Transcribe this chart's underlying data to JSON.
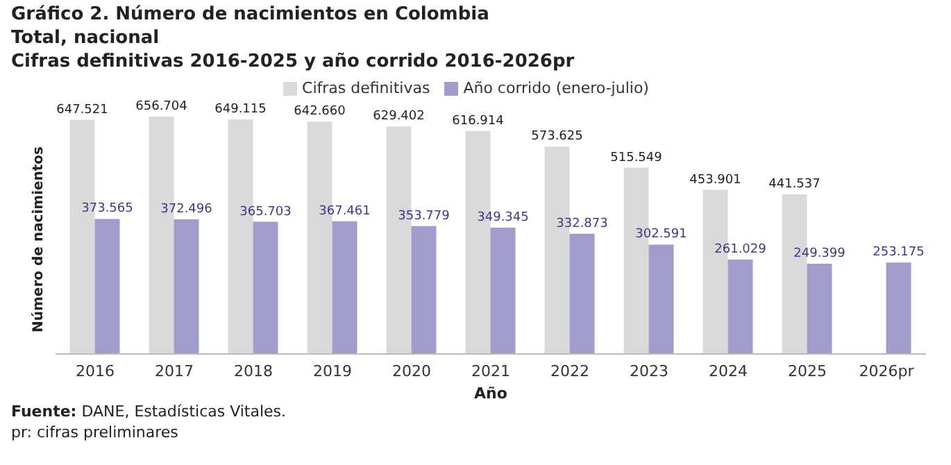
{
  "chart_data": {
    "type": "bar",
    "title": "Gráfico 2. Número de nacimientos en Colombia",
    "subtitle": "Total, nacional\nCifras definitivas 2016-2025 y año corrido 2016-2026pr",
    "xlabel": "Año",
    "ylabel": "Número de nacimientos",
    "categories": [
      "2016",
      "2017",
      "2018",
      "2019",
      "2020",
      "2021",
      "2022",
      "2023",
      "2024",
      "2025",
      "2026pr"
    ],
    "series": [
      {
        "name": "Cifras definitivas",
        "color": "#d9d9d9",
        "values": [
          647521,
          656704,
          649115,
          642660,
          629402,
          616914,
          573625,
          515549,
          453901,
          441537,
          null
        ],
        "value_labels": [
          "647.521",
          "656.704",
          "649.115",
          "642.660",
          "629.402",
          "616.914",
          "573.625",
          "515.549",
          "453.901",
          "441.537",
          null
        ]
      },
      {
        "name": "Año corrido (enero-julio)",
        "color": "#a09dcc",
        "values": [
          373565,
          372496,
          365703,
          367461,
          353779,
          349345,
          332873,
          302591,
          261029,
          249399,
          253175
        ],
        "value_labels": [
          "373.565",
          "372.496",
          "365.703",
          "367.461",
          "353.779",
          "349.345",
          "332.873",
          "302.591",
          "261.029",
          "249.399",
          "253.175"
        ]
      }
    ],
    "legend": "top",
    "grid": false,
    "tick_labels": "x",
    "annotations": [
      "Fuente: DANE, Estadísticas Vitales.",
      "pr: cifras preliminares"
    ]
  }
}
